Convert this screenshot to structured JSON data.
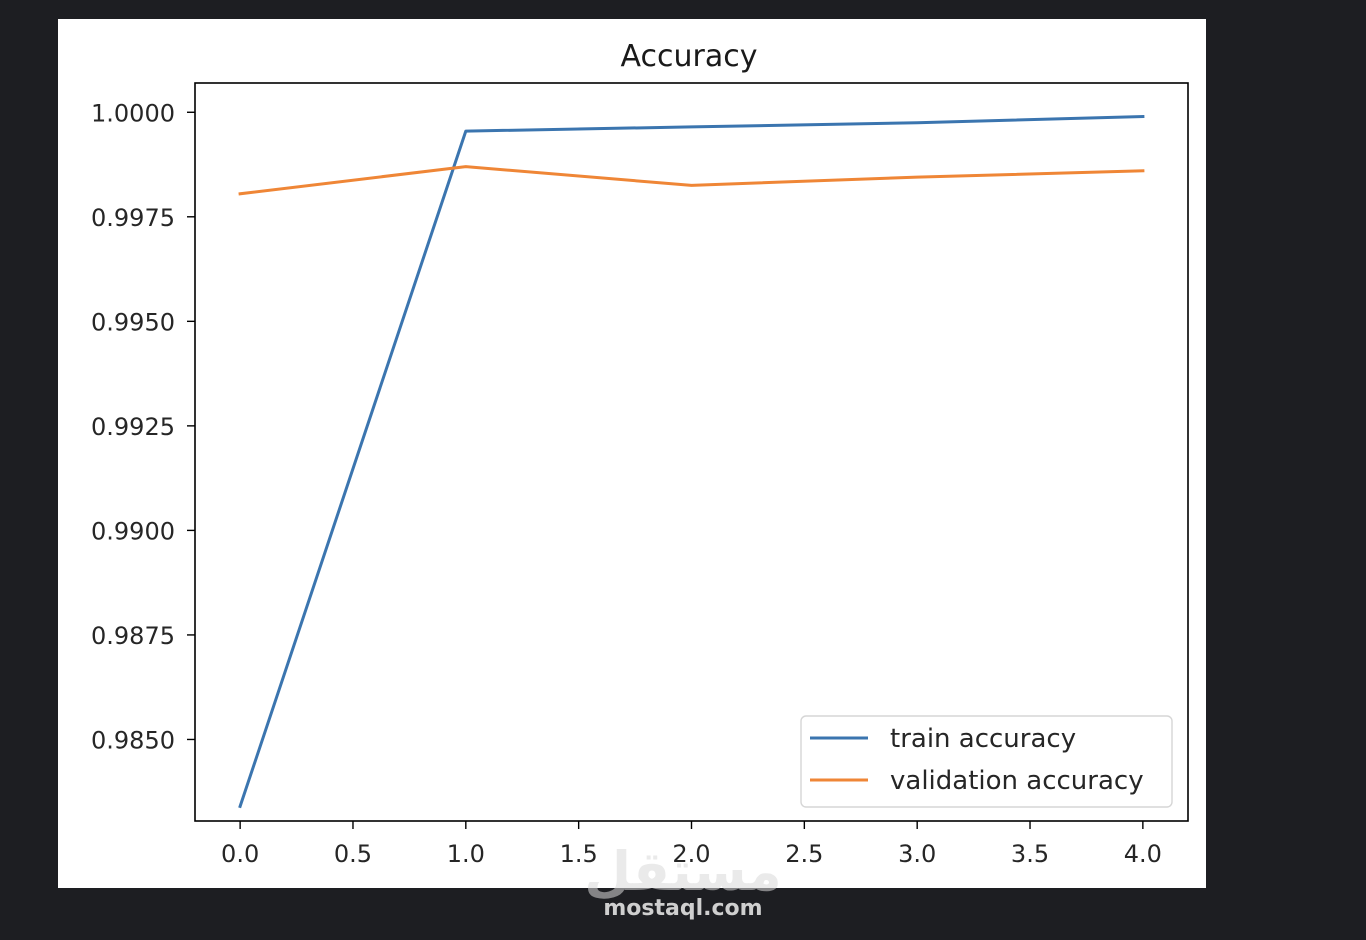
{
  "chart_data": {
    "type": "line",
    "title": "Accuracy",
    "xlabel": "",
    "ylabel": "",
    "x": [
      0,
      1,
      2,
      3,
      4
    ],
    "xlim": [
      -0.2,
      4.2
    ],
    "ylim": [
      0.98305,
      1.0007
    ],
    "xticks": [
      "0.0",
      "0.5",
      "1.0",
      "1.5",
      "2.0",
      "2.5",
      "3.0",
      "3.5",
      "4.0"
    ],
    "xtick_values": [
      0,
      0.5,
      1,
      1.5,
      2,
      2.5,
      3,
      3.5,
      4
    ],
    "yticks": [
      "0.9850",
      "0.9875",
      "0.9900",
      "0.9925",
      "0.9950",
      "0.9975",
      "1.0000"
    ],
    "ytick_values": [
      0.985,
      0.9875,
      0.99,
      0.9925,
      0.995,
      0.9975,
      1.0
    ],
    "grid": false,
    "legend_position": "lower-right",
    "series": [
      {
        "name": "train accuracy",
        "color": "#3b75af",
        "values": [
          0.9834,
          0.99955,
          0.99965,
          0.99975,
          0.9999
        ]
      },
      {
        "name": "validation accuracy",
        "color": "#ef8636",
        "values": [
          0.99805,
          0.9987,
          0.99825,
          0.99845,
          0.9986
        ]
      }
    ]
  },
  "watermark": {
    "arabic": "مستقل",
    "site": "mostaql.com"
  }
}
